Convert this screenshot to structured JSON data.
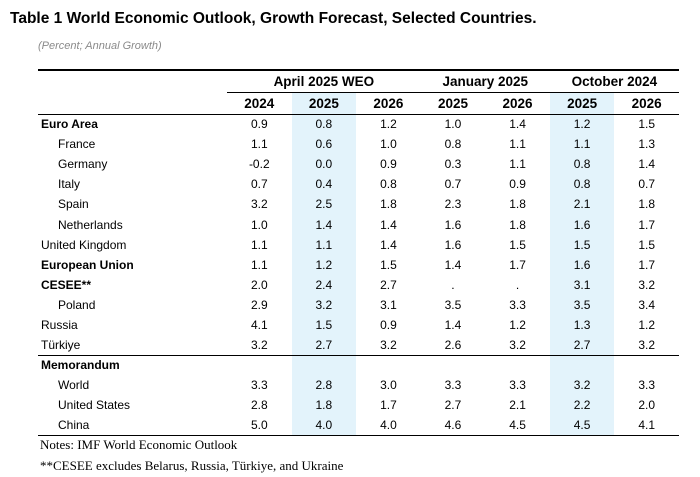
{
  "title": "Table 1 World Economic Outlook, Growth Forecast, Selected Countries.",
  "subtitle": "(Percent; Annual Growth)",
  "column_groups": [
    {
      "label": "April 2025 WEO",
      "years": [
        "2024",
        "2025",
        "2026"
      ]
    },
    {
      "label": "January 2025",
      "years": [
        "2025",
        "2026"
      ]
    },
    {
      "label": "October 2024",
      "years": [
        "2025",
        "2026"
      ]
    }
  ],
  "rows": [
    {
      "name": "Euro Area",
      "bold": true,
      "indent": false,
      "values": [
        "0.9",
        "0.8",
        "1.2",
        "1.0",
        "1.4",
        "1.2",
        "1.5"
      ]
    },
    {
      "name": "France",
      "bold": false,
      "indent": true,
      "values": [
        "1.1",
        "0.6",
        "1.0",
        "0.8",
        "1.1",
        "1.1",
        "1.3"
      ]
    },
    {
      "name": "Germany",
      "bold": false,
      "indent": true,
      "values": [
        "-0.2",
        "0.0",
        "0.9",
        "0.3",
        "1.1",
        "0.8",
        "1.4"
      ]
    },
    {
      "name": "Italy",
      "bold": false,
      "indent": true,
      "values": [
        "0.7",
        "0.4",
        "0.8",
        "0.7",
        "0.9",
        "0.8",
        "0.7"
      ]
    },
    {
      "name": "Spain",
      "bold": false,
      "indent": true,
      "values": [
        "3.2",
        "2.5",
        "1.8",
        "2.3",
        "1.8",
        "2.1",
        "1.8"
      ]
    },
    {
      "name": "Netherlands",
      "bold": false,
      "indent": true,
      "values": [
        "1.0",
        "1.4",
        "1.4",
        "1.6",
        "1.8",
        "1.6",
        "1.7"
      ]
    },
    {
      "name": "United Kingdom",
      "bold": false,
      "indent": false,
      "values": [
        "1.1",
        "1.1",
        "1.4",
        "1.6",
        "1.5",
        "1.5",
        "1.5"
      ]
    },
    {
      "name": "European Union",
      "bold": true,
      "indent": false,
      "values": [
        "1.1",
        "1.2",
        "1.5",
        "1.4",
        "1.7",
        "1.6",
        "1.7"
      ]
    },
    {
      "name": "CESEE**",
      "bold": true,
      "indent": false,
      "values": [
        "2.0",
        "2.4",
        "2.7",
        ".",
        ".",
        "3.1",
        "3.2"
      ]
    },
    {
      "name": "Poland",
      "bold": false,
      "indent": true,
      "values": [
        "2.9",
        "3.2",
        "3.1",
        "3.5",
        "3.3",
        "3.5",
        "3.4"
      ]
    },
    {
      "name": "Russia",
      "bold": false,
      "indent": false,
      "values": [
        "4.1",
        "1.5",
        "0.9",
        "1.4",
        "1.2",
        "1.3",
        "1.2"
      ]
    },
    {
      "name": "Türkiye",
      "bold": false,
      "indent": false,
      "values": [
        "3.2",
        "2.7",
        "3.2",
        "2.6",
        "3.2",
        "2.7",
        "3.2"
      ]
    },
    {
      "name": "Memorandum",
      "bold": true,
      "indent": false,
      "section_top": true,
      "values": [
        "",
        "",
        "",
        "",
        "",
        "",
        ""
      ]
    },
    {
      "name": "World",
      "bold": false,
      "indent": true,
      "values": [
        "3.3",
        "2.8",
        "3.0",
        "3.3",
        "3.3",
        "3.2",
        "3.3"
      ]
    },
    {
      "name": "United States",
      "bold": false,
      "indent": true,
      "values": [
        "2.8",
        "1.8",
        "1.7",
        "2.7",
        "2.1",
        "2.2",
        "2.0"
      ]
    },
    {
      "name": "China",
      "bold": false,
      "indent": true,
      "last": true,
      "values": [
        "5.0",
        "4.0",
        "4.0",
        "4.6",
        "4.5",
        "4.5",
        "4.1"
      ]
    }
  ],
  "notes": [
    "Notes: IMF World Economic Outlook",
    "**CESEE excludes Belarus, Russia, Türkiye, and Ukraine"
  ],
  "colors": {
    "shade": "#e3f3fb",
    "subtitle": "#8a8a8a"
  }
}
